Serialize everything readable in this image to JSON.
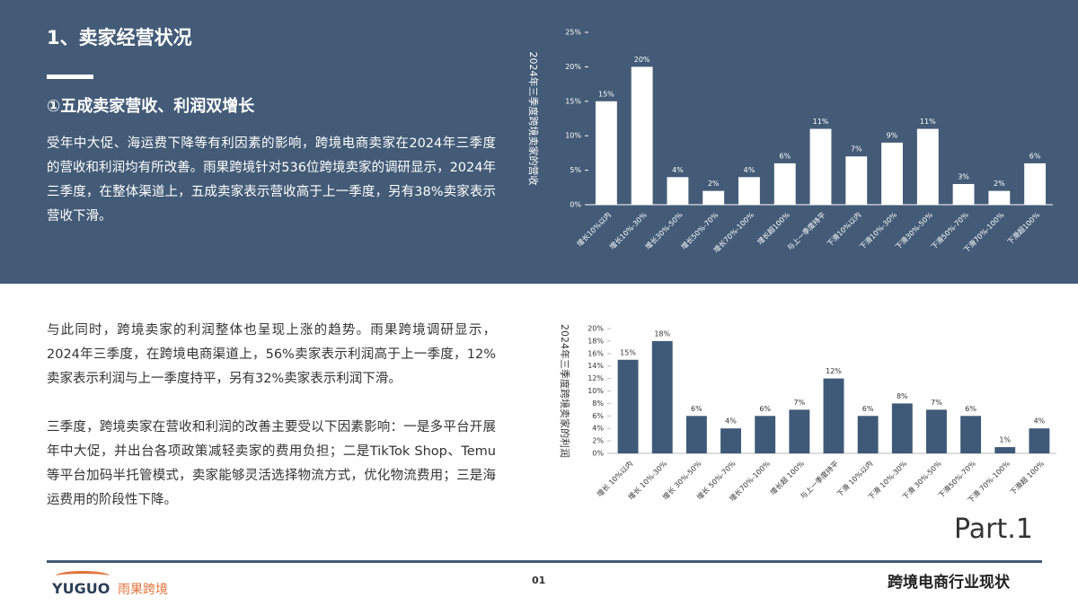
{
  "header": {
    "title": "1、卖家经营状况",
    "subtitle": "①五成卖家营收、利润双增长"
  },
  "paragraphs": [
    "受年中大促、海运费下降等有利因素的影响，跨境电商卖家在2024年三季度的营收和利润均有所改善。雨果跨境针对536位跨境卖家的调研显示，2024年三季度，在整体渠道上，五成卖家表示营收高于上一季度，另有38%卖家表示营收下滑。",
    "与此同时，跨境卖家的利润整体也呈现上涨的趋势。雨果跨境调研显示，2024年三季度，在跨境电商渠道上，56%卖家表示利润高于上一季度，12%卖家表示利润与上一季度持平，另有32%卖家表示利润下滑。",
    "三季度，跨境卖家在营收和利润的改善主要受以下因素影响：一是多平台开展年中大促，并出台各项政策减轻卖家的费用负担；二是TikTok Shop、Temu等平台加码半托管模式，卖家能够灵活选择物流方式，优化物流费用；三是海运费用的阶段性下降。"
  ],
  "part": "Part.1",
  "footer": {
    "logo": "YUGUO",
    "brand": "雨果跨境",
    "page": "01",
    "section": "跨境电商行业现状"
  },
  "chart_data": [
    {
      "type": "bar",
      "y_label": "2024年三季度跨境卖家的营收",
      "color": "#ffffff",
      "categories": [
        "增长10%以内",
        "增长10%-30%",
        "增长30%-50%",
        "增长50%-70%",
        "增长70%-100%",
        "增长超100%",
        "与上一季度持平",
        "下滑10%以内",
        "下滑10%-30%",
        "下滑30%-50%",
        "下滑50%-70%",
        "下滑70%-100%",
        "下滑超100%"
      ],
      "values": [
        15,
        20,
        4,
        2,
        4,
        6,
        11,
        7,
        9,
        11,
        3,
        2,
        6
      ],
      "value_labels": [
        "15%",
        "20%",
        "4%",
        "2%",
        "4%",
        "6%",
        "11%",
        "7%",
        "9%",
        "11%",
        "3%",
        "2%",
        "6%"
      ],
      "ylim": [
        0,
        25
      ],
      "yticks": [
        {
          "value": 0,
          "label": "0%"
        },
        {
          "value": 5,
          "label": "5%"
        },
        {
          "value": 10,
          "label": "10%"
        },
        {
          "value": 15,
          "label": "15%"
        },
        {
          "value": 20,
          "label": "20%"
        },
        {
          "value": 25,
          "label": "25%"
        }
      ],
      "grid": false
    },
    {
      "type": "bar",
      "y_label": "2024年三季度跨境卖家的利润",
      "color": "#3f5a78",
      "categories": [
        "增长 10%以内",
        "增长 10%-30%",
        "增长 30%-50%",
        "增长 50%-70%",
        "增长70%-100%",
        "增长超 100%",
        "与上一季度持平",
        "下滑 10%以内",
        "下滑 10%-30%",
        "下滑 30%-50%",
        "下滑50%-70%",
        "下滑 70%-100%",
        "下滑超 100%"
      ],
      "values": [
        15,
        18,
        6,
        4,
        6,
        7,
        12,
        6,
        8,
        7,
        6,
        1,
        4
      ],
      "value_labels": [
        "15%",
        "18%",
        "6%",
        "4%",
        "6%",
        "7%",
        "12%",
        "6%",
        "8%",
        "7%",
        "6%",
        "1%",
        "4%"
      ],
      "ylim": [
        0,
        20
      ],
      "yticks": [
        {
          "value": 0,
          "label": "0%"
        },
        {
          "value": 2,
          "label": "2%"
        },
        {
          "value": 4,
          "label": "4%"
        },
        {
          "value": 6,
          "label": "6%"
        },
        {
          "value": 8,
          "label": "8%"
        },
        {
          "value": 10,
          "label": "10%"
        },
        {
          "value": 12,
          "label": "12%"
        },
        {
          "value": 14,
          "label": "14%"
        },
        {
          "value": 16,
          "label": "16%"
        },
        {
          "value": 18,
          "label": "18%"
        },
        {
          "value": 20,
          "label": "20%"
        }
      ],
      "grid": false
    }
  ]
}
